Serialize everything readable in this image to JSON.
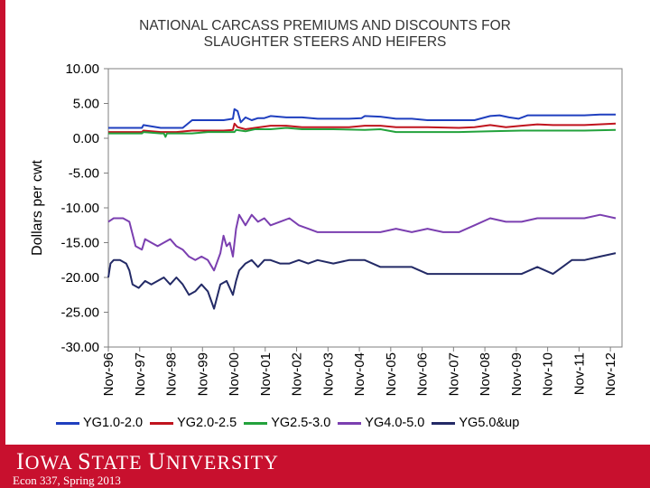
{
  "chart_data": {
    "type": "line",
    "title_line1": "NATIONAL CARCASS PREMIUMS AND DISCOUNTS FOR",
    "title_line2": "SLAUGHTER STEERS AND HEIFERS",
    "ylabel": "Dollars per cwt",
    "xlabel": "",
    "ylim": [
      -30,
      10
    ],
    "y_ticks": [
      "10.00",
      "5.00",
      "0.00",
      "-5.00",
      "-10.00",
      "-15.00",
      "-20.00",
      "-25.00",
      "-30.00"
    ],
    "y_tick_values": [
      10,
      5,
      0,
      -5,
      -10,
      -15,
      -20,
      -25,
      -30
    ],
    "x_ticks": [
      "Nov-96",
      "Nov-97",
      "Nov-98",
      "Nov-99",
      "Nov-00",
      "Nov-01",
      "Nov-02",
      "Nov-03",
      "Nov-04",
      "Nov-05",
      "Nov-06",
      "Nov-07",
      "Nov-08",
      "Nov-09",
      "Nov-10",
      "Nov-11",
      "Nov-12"
    ],
    "x_range": [
      1996.83,
      2013.2
    ],
    "grid": false,
    "legend_position": "bottom",
    "series": [
      {
        "name": "YG1.0-2.0",
        "color": "#1f3fbf",
        "x": [
          1996.83,
          1997.9,
          1997.95,
          1998.5,
          1999.0,
          1999.2,
          1999.5,
          1999.8,
          2000.0,
          2000.3,
          2000.5,
          2000.8,
          2000.85,
          2000.95,
          2001.05,
          2001.2,
          2001.4,
          2001.6,
          2001.8,
          2002.0,
          2002.5,
          2003.0,
          2003.5,
          2004.0,
          2004.5,
          2004.9,
          2005.0,
          2005.5,
          2006.0,
          2006.5,
          2007.0,
          2007.5,
          2008.0,
          2008.5,
          2009.0,
          2009.3,
          2009.6,
          2009.9,
          2010.2,
          2010.8,
          2011.5,
          2012.0,
          2012.5,
          2013.0
        ],
        "y": [
          1.5,
          1.5,
          1.9,
          1.5,
          1.5,
          1.5,
          2.6,
          2.6,
          2.6,
          2.6,
          2.6,
          2.8,
          4.2,
          3.9,
          2.3,
          3.0,
          2.6,
          2.9,
          2.9,
          3.2,
          3.0,
          3.0,
          2.8,
          2.8,
          2.8,
          2.9,
          3.2,
          3.1,
          2.8,
          2.8,
          2.6,
          2.6,
          2.6,
          2.6,
          3.2,
          3.3,
          3.0,
          2.8,
          3.3,
          3.3,
          3.3,
          3.3,
          3.4,
          3.4
        ]
      },
      {
        "name": "YG2.0-2.5",
        "color": "#c0141e",
        "x": [
          1996.83,
          1997.9,
          1997.95,
          1998.5,
          1999.0,
          1999.5,
          2000.0,
          2000.5,
          2000.8,
          2000.85,
          2000.95,
          2001.2,
          2001.5,
          2002.0,
          2002.5,
          2003.0,
          2003.5,
          2004.0,
          2004.5,
          2005.0,
          2005.5,
          2006.0,
          2007.0,
          2008.0,
          2008.5,
          2009.0,
          2009.5,
          2010.0,
          2010.5,
          2011.0,
          2012.0,
          2013.0
        ],
        "y": [
          0.9,
          0.9,
          1.1,
          0.9,
          0.9,
          1.1,
          1.1,
          1.1,
          1.2,
          2.1,
          1.6,
          1.3,
          1.5,
          1.8,
          1.8,
          1.6,
          1.6,
          1.6,
          1.6,
          1.8,
          1.8,
          1.6,
          1.6,
          1.5,
          1.6,
          1.9,
          1.6,
          1.8,
          2.0,
          1.9,
          1.9,
          2.1
        ]
      },
      {
        "name": "YG2.5-3.0",
        "color": "#23a23c",
        "x": [
          1996.83,
          1997.9,
          1997.95,
          1998.5,
          1998.6,
          1998.65,
          1998.7,
          1999.5,
          2000.0,
          2000.5,
          2000.85,
          2000.9,
          2001.2,
          2001.5,
          2002.0,
          2002.5,
          2003.0,
          2004.0,
          2005.0,
          2005.5,
          2006.0,
          2007.0,
          2008.0,
          2009.0,
          2010.0,
          2011.0,
          2012.0,
          2013.0
        ],
        "y": [
          0.7,
          0.7,
          0.9,
          0.7,
          0.7,
          0.2,
          0.7,
          0.7,
          0.9,
          0.9,
          0.9,
          1.2,
          1.0,
          1.3,
          1.3,
          1.5,
          1.3,
          1.3,
          1.2,
          1.3,
          0.9,
          0.9,
          0.9,
          1.0,
          1.1,
          1.1,
          1.1,
          1.2
        ]
      },
      {
        "name": "YG4.0-5.0",
        "color": "#7b3fb0",
        "x": [
          1996.83,
          1997.0,
          1997.3,
          1997.5,
          1997.7,
          1997.9,
          1998.0,
          1998.2,
          1998.4,
          1998.6,
          1998.8,
          1999.0,
          1999.2,
          1999.4,
          1999.6,
          1999.8,
          2000.0,
          2000.2,
          2000.4,
          2000.5,
          2000.6,
          2000.7,
          2000.8,
          2000.9,
          2001.0,
          2001.2,
          2001.4,
          2001.6,
          2001.8,
          2002.0,
          2002.3,
          2002.6,
          2002.9,
          2003.2,
          2003.5,
          2004.0,
          2004.5,
          2005.0,
          2005.5,
          2006.0,
          2006.5,
          2007.0,
          2007.5,
          2008.0,
          2008.5,
          2009.0,
          2009.5,
          2010.0,
          2010.5,
          2011.0,
          2011.5,
          2012.0,
          2012.5,
          2013.0
        ],
        "y": [
          -12.0,
          -11.5,
          -11.5,
          -12.0,
          -15.5,
          -16.0,
          -14.5,
          -15.0,
          -15.5,
          -15.0,
          -14.5,
          -15.5,
          -16.0,
          -17.0,
          -17.5,
          -17.0,
          -17.5,
          -19.0,
          -16.5,
          -14.0,
          -15.5,
          -15.0,
          -17.0,
          -13.0,
          -11.0,
          -12.5,
          -11.0,
          -12.0,
          -11.5,
          -12.5,
          -12.0,
          -11.5,
          -12.5,
          -13.0,
          -13.5,
          -13.5,
          -13.5,
          -13.5,
          -13.5,
          -13.0,
          -13.5,
          -13.0,
          -13.5,
          -13.5,
          -12.5,
          -11.5,
          -12.0,
          -12.0,
          -11.5,
          -11.5,
          -11.5,
          -11.5,
          -11.0,
          -11.5
        ]
      },
      {
        "name": "YG5.0&up",
        "color": "#232a66",
        "x": [
          1996.83,
          1996.9,
          1997.0,
          1997.2,
          1997.4,
          1997.5,
          1997.6,
          1997.8,
          1998.0,
          1998.2,
          1998.4,
          1998.6,
          1998.8,
          1999.0,
          1999.2,
          1999.4,
          1999.6,
          1999.8,
          2000.0,
          2000.2,
          2000.4,
          2000.6,
          2000.8,
          2000.9,
          2001.0,
          2001.2,
          2001.4,
          2001.6,
          2001.8,
          2002.0,
          2002.3,
          2002.6,
          2002.9,
          2003.2,
          2003.5,
          2004.0,
          2004.5,
          2005.0,
          2005.5,
          2006.0,
          2006.5,
          2007.0,
          2007.5,
          2008.0,
          2008.5,
          2009.0,
          2009.5,
          2010.0,
          2010.5,
          2011.0,
          2011.3,
          2011.6,
          2012.0,
          2012.5,
          2013.0
        ],
        "y": [
          -20.0,
          -18.0,
          -17.5,
          -17.5,
          -18.0,
          -19.0,
          -21.0,
          -21.5,
          -20.5,
          -21.0,
          -20.5,
          -20.0,
          -21.0,
          -20.0,
          -21.0,
          -22.5,
          -22.0,
          -21.0,
          -22.0,
          -24.5,
          -21.0,
          -20.5,
          -22.5,
          -20.5,
          -19.0,
          -18.0,
          -17.5,
          -18.5,
          -17.5,
          -17.5,
          -18.0,
          -18.0,
          -17.5,
          -18.0,
          -17.5,
          -18.0,
          -17.5,
          -17.5,
          -18.5,
          -18.5,
          -18.5,
          -19.5,
          -19.5,
          -19.5,
          -19.5,
          -19.5,
          -19.5,
          -19.5,
          -18.5,
          -19.5,
          -18.5,
          -17.5,
          -17.5,
          -17.0,
          -16.5
        ]
      }
    ]
  },
  "footer": {
    "university_name": "Iowa State University",
    "course": "Econ 337, Spring 2013"
  }
}
